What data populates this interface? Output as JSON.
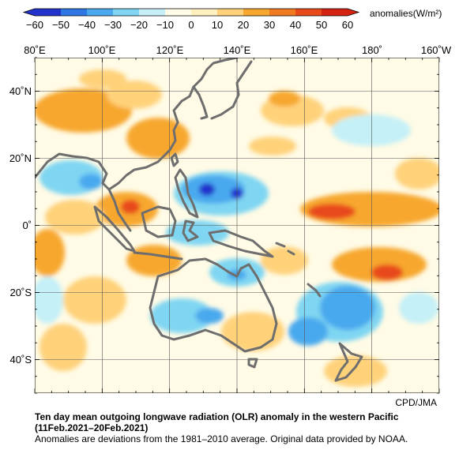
{
  "colorbar": {
    "unit_label": "anomalies(W/m²)",
    "ticks": [
      "−60",
      "−50",
      "−40",
      "−30",
      "−20",
      "−10",
      "0",
      "10",
      "20",
      "30",
      "40",
      "50",
      "60"
    ],
    "colors": [
      "#2233cc",
      "#2e78e6",
      "#4aa9ee",
      "#7fd6f2",
      "#c5f0f7",
      "#fffbe6",
      "#fff0c0",
      "#ffd27a",
      "#f7a72e",
      "#f07a20",
      "#e84a1a",
      "#d42310"
    ]
  },
  "map": {
    "lon_labels": [
      "80˚E",
      "100˚E",
      "120˚E",
      "140˚E",
      "160˚E",
      "180˚",
      "160˚W"
    ],
    "lat_labels": [
      "40˚N",
      "20˚N",
      "0˚",
      "20˚S",
      "40˚S"
    ],
    "lon_range": [
      80,
      200
    ],
    "lat_range": [
      -50,
      50
    ],
    "credit": "CPD/JMA",
    "land_outline_color": "#6e6e6e",
    "background_color": "#fffbe6",
    "positive_anomaly_color": "#f7a72e",
    "negative_anomaly_color": "#4aa9ee"
  },
  "caption": {
    "title": "Ten day mean outgoing longwave radiation (OLR) anomaly in the western Pacific",
    "period": "(11Feb.2021–20Feb.2021)",
    "note": "Anomalies are deviations from the 1981–2010 average. Original data provided by NOAA."
  }
}
